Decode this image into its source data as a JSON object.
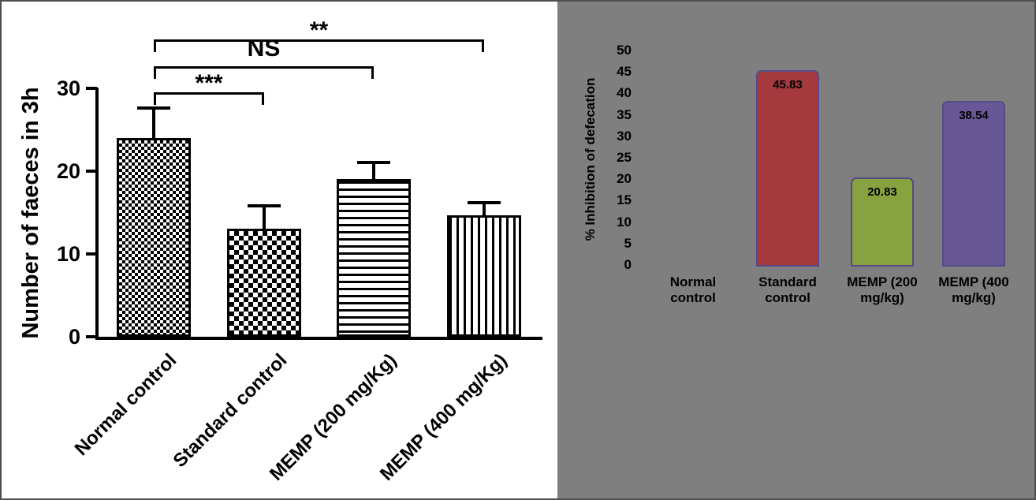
{
  "chart_data": [
    {
      "type": "bar",
      "panel": "left",
      "title": "",
      "ylabel": "Number of faeces in 3h",
      "xlabel": "",
      "categories": [
        "Normal control",
        "Standard control",
        "MEMP (200 mg/Kg)",
        "MEMP (400 mg/Kg)"
      ],
      "values": [
        24,
        13,
        19,
        14.7
      ],
      "errors_upper": [
        3.8,
        3,
        2.2,
        1.7
      ],
      "ylim": [
        0,
        30
      ],
      "yticks": [
        0,
        10,
        20,
        30
      ],
      "grid": false,
      "legend": false,
      "bar_fill": "pattern",
      "bar_patterns": [
        "fine-checkerboard",
        "checkerboard",
        "horizontal-stripes",
        "vertical-stripes"
      ],
      "bar_border_color": "#000000",
      "significance_brackets": [
        {
          "from": 0,
          "to": 1,
          "label": "***"
        },
        {
          "from": 0,
          "to": 2,
          "label": "NS"
        },
        {
          "from": 0,
          "to": 3,
          "label": "**"
        }
      ]
    },
    {
      "type": "bar",
      "panel": "right",
      "title": "",
      "ylabel": "% Inhibition of defecation",
      "xlabel": "",
      "categories": [
        "Normal control",
        "Standard control",
        "MEMP (200 mg/kg)",
        "MEMP (400 mg/kg)"
      ],
      "values": [
        0,
        45.83,
        20.83,
        38.54
      ],
      "data_labels": [
        "",
        "45.83",
        "20.83",
        "38.54"
      ],
      "bar_colors": [
        "",
        "#a43a3e",
        "#87a23e",
        "#675796"
      ],
      "bar_border_color": "#554a85",
      "background_color": "#7f7f7f",
      "ylim": [
        0,
        50
      ],
      "yticks": [
        0,
        5,
        10,
        15,
        20,
        25,
        30,
        35,
        40,
        45,
        50
      ],
      "grid": false,
      "legend": false
    }
  ]
}
